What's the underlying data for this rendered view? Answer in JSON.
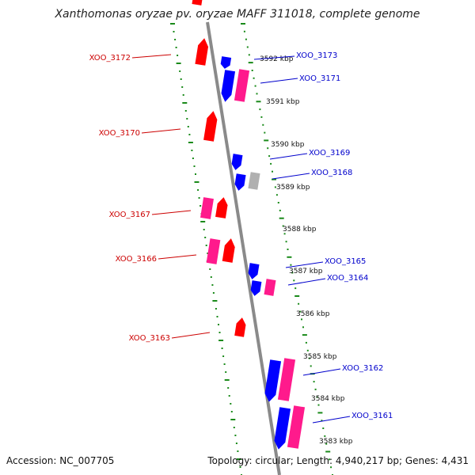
{
  "title": "Xanthomonas oryzae pv. oryzae MAFF 311018, complete genome",
  "footer": {
    "accession": "Accession: NC_007705",
    "topology": "Topology: circular; Length: 4,940,217 bp; Genes: 4,431"
  },
  "colors": {
    "forward_gene": "#ff0000",
    "reverse_gene": "#0000ff",
    "forward_cds": "#ff1a8c",
    "reverse_cds": "#ff1a8c",
    "other_feature": "#b0b0b0",
    "backbone": "#888888",
    "tick": "#1a8a1a",
    "label_forward": "#cc0000",
    "label_reverse": "#0000cc"
  },
  "scale_labels": [
    "3592 kbp",
    "3591 kbp",
    "3590 kbp",
    "3589 kbp",
    "3588 kbp",
    "3587 kbp",
    "3586 kbp",
    "3585 kbp",
    "3584 kbp",
    "3583 kbp"
  ],
  "gene_labels": {
    "left": [
      "XOO_3172",
      "XOO_3170",
      "XOO_3167",
      "XOO_3166",
      "XOO_3163"
    ],
    "right": [
      "XOO_3173",
      "XOO_3171",
      "XOO_3169",
      "XOO_3168",
      "XOO_3165",
      "XOO_3164",
      "XOO_3162",
      "XOO_3161"
    ]
  }
}
